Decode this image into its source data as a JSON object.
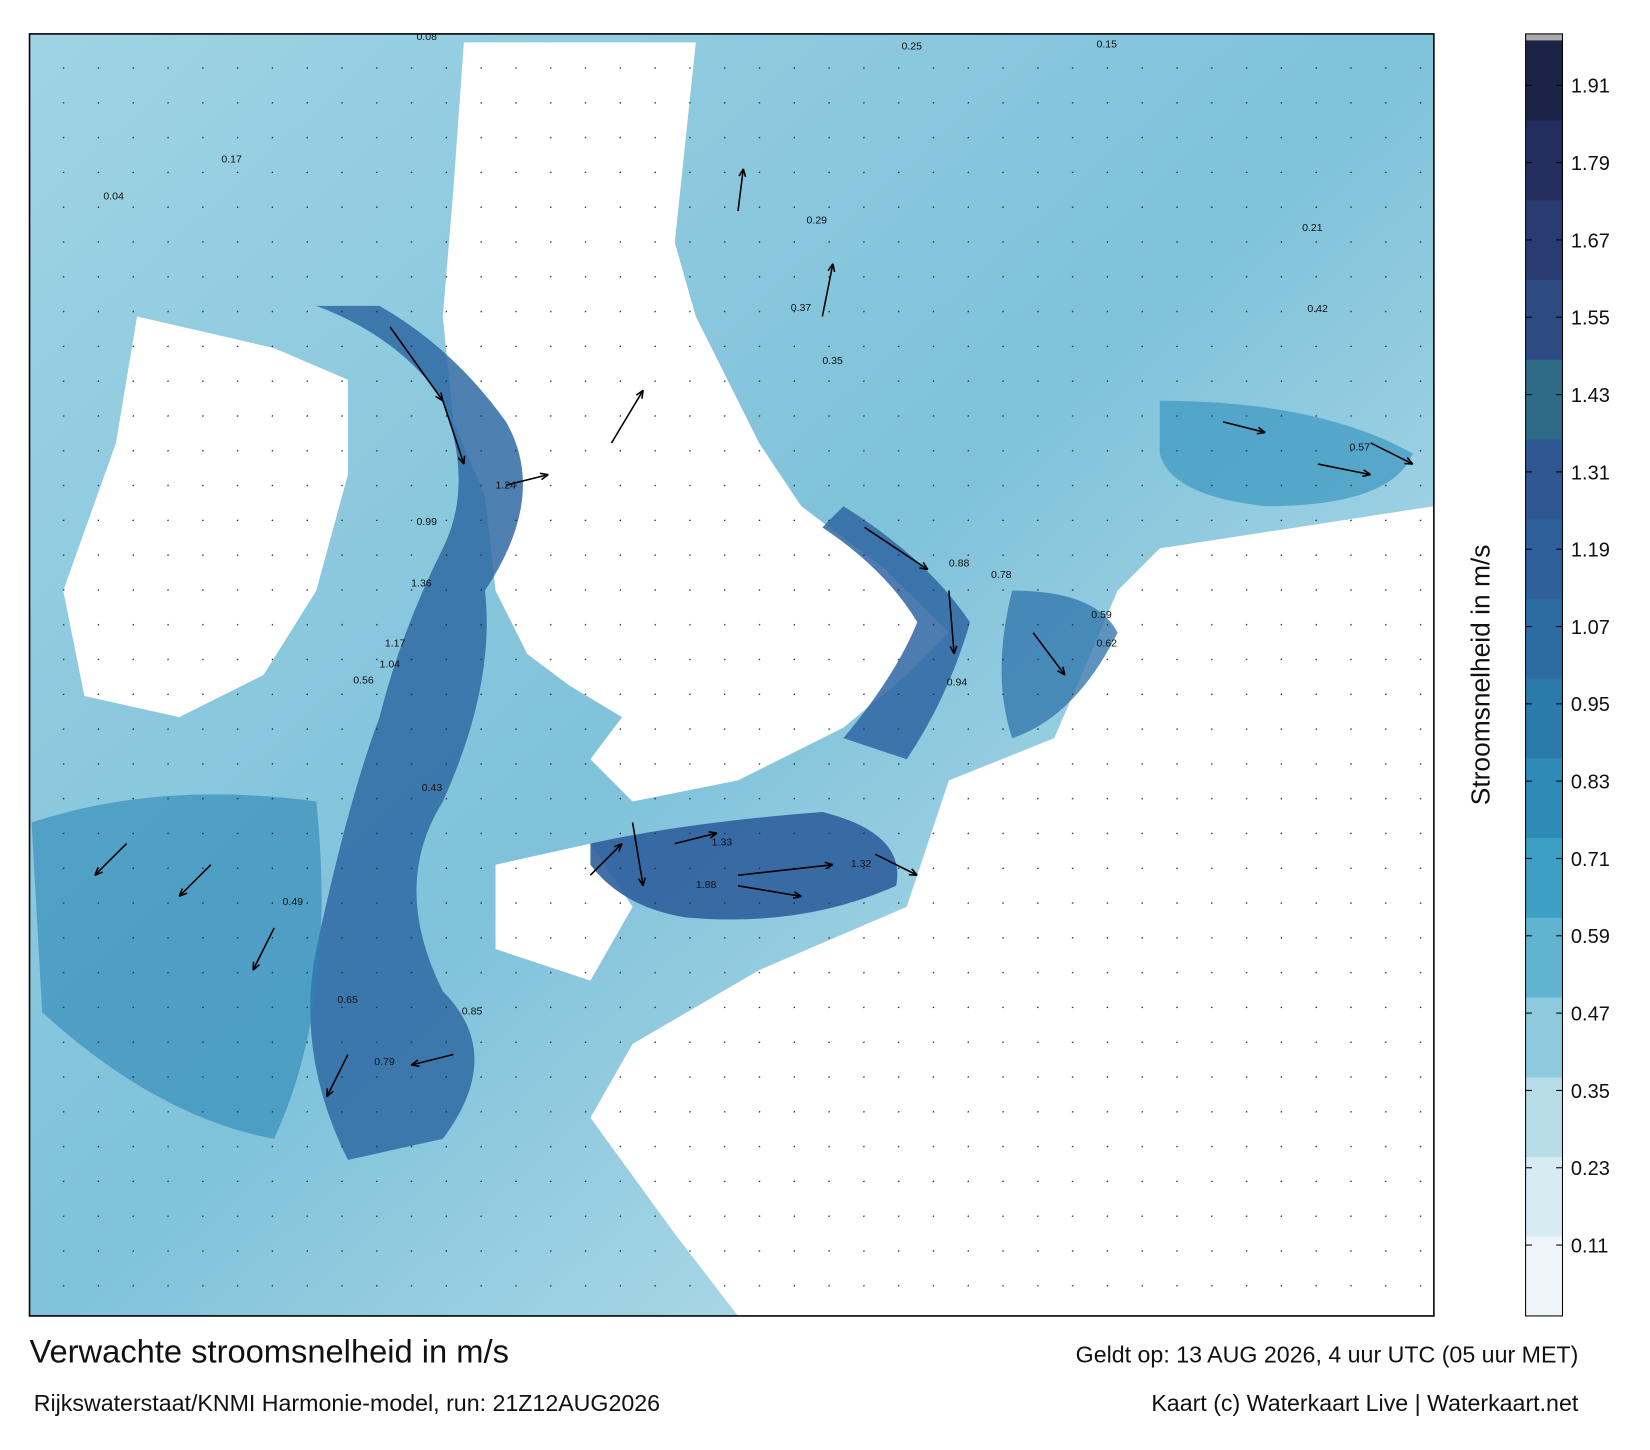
{
  "title": "Verwachte stroomsnelheid in m/s",
  "valid_time": "Geldt op: 13 AUG 2026, 4 uur UTC (05 uur MET)",
  "source": "Rijkswaterstaat/KNMI Harmonie-model, run: 21Z12AUG2026",
  "credit": "Kaart (c) Waterkaart Live | Waterkaart.net",
  "colorbar": {
    "label": "Stroomsnelheid in m/s",
    "lim": [
      0,
      1.98
    ],
    "ticks": [
      0.11,
      0.23,
      0.35,
      0.47,
      0.59,
      0.71,
      0.83,
      0.95,
      1.07,
      1.19,
      1.31,
      1.43,
      1.55,
      1.67,
      1.79,
      1.91
    ],
    "colors": [
      "#eef6f9",
      "#d6ebf2",
      "#b6dce8",
      "#8ecadd",
      "#61b4cf",
      "#3d9fc3",
      "#2e8ab6",
      "#2a7aaa",
      "#2c6ca3",
      "#2e609b",
      "#2f5792",
      "#2d6b86",
      "#2d4a82",
      "#2a3b72",
      "#232d5e",
      "#1b2347"
    ]
  },
  "map": {
    "labels": [
      1.88,
      1.33,
      1.32,
      1.24,
      1.36,
      1.17,
      1.04,
      0.99,
      0.85,
      0.79,
      0.65,
      0.56,
      0.49,
      0.43,
      0.37,
      0.35,
      0.29,
      0.25,
      0.15,
      0.59,
      0.62,
      0.57,
      0.42,
      0.21,
      0.04,
      0.08,
      0.17,
      0.94,
      0.88,
      0.78
    ]
  }
}
